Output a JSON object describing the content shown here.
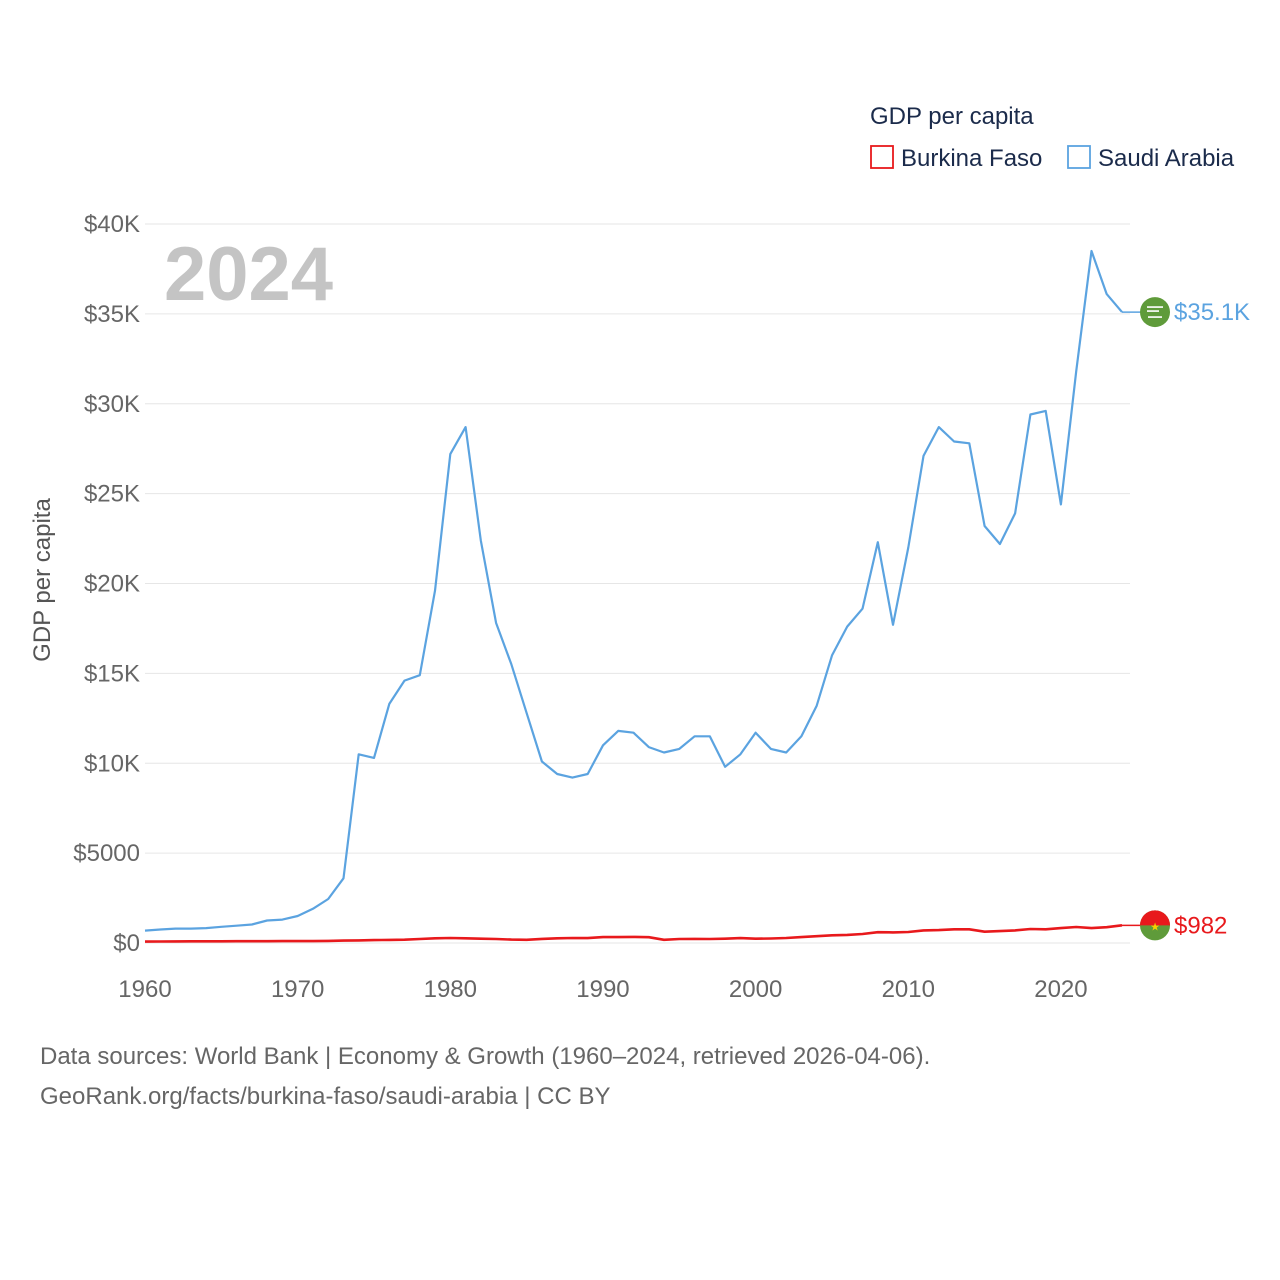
{
  "chart_data": {
    "type": "line",
    "title": "",
    "year_label": "2024",
    "ylabel": "GDP per capita",
    "xlabel": "",
    "ylim": [
      0,
      40000
    ],
    "xlim": [
      1960,
      2024
    ],
    "y_ticks": [
      0,
      5000,
      10000,
      15000,
      20000,
      25000,
      30000,
      35000,
      40000
    ],
    "y_tick_labels": [
      "$0",
      "$5000",
      "$10K",
      "$15K",
      "$20K",
      "$25K",
      "$30K",
      "$35K",
      "$40K"
    ],
    "x_ticks": [
      1960,
      1970,
      1980,
      1990,
      2000,
      2010,
      2020
    ],
    "x_tick_labels": [
      "1960",
      "1970",
      "1980",
      "1990",
      "2000",
      "2010",
      "2020"
    ],
    "grid": true,
    "legend": {
      "title": "GDP per capita",
      "position": "top-right"
    },
    "x": [
      1960,
      1961,
      1962,
      1963,
      1964,
      1965,
      1966,
      1967,
      1968,
      1969,
      1970,
      1971,
      1972,
      1973,
      1974,
      1975,
      1976,
      1977,
      1978,
      1979,
      1980,
      1981,
      1982,
      1983,
      1984,
      1985,
      1986,
      1987,
      1988,
      1989,
      1990,
      1991,
      1992,
      1993,
      1994,
      1995,
      1996,
      1997,
      1998,
      1999,
      2000,
      2001,
      2002,
      2003,
      2004,
      2005,
      2006,
      2007,
      2008,
      2009,
      2010,
      2011,
      2012,
      2013,
      2014,
      2015,
      2016,
      2017,
      2018,
      2019,
      2020,
      2021,
      2022,
      2023,
      2024
    ],
    "series": [
      {
        "name": "Burkina Faso",
        "color": "#e8191c",
        "end_label": "$982",
        "flag_icon": "burkina-faso-flag-icon",
        "values": [
          80,
          85,
          90,
          92,
          95,
          97,
          100,
          100,
          100,
          105,
          105,
          105,
          115,
          135,
          145,
          160,
          170,
          185,
          220,
          260,
          280,
          260,
          240,
          220,
          190,
          180,
          230,
          260,
          280,
          275,
          330,
          330,
          340,
          320,
          180,
          220,
          230,
          220,
          240,
          270,
          240,
          250,
          280,
          330,
          380,
          430,
          450,
          500,
          600,
          590,
          610,
          700,
          720,
          760,
          760,
          630,
          660,
          700,
          780,
          760,
          830,
          890,
          830,
          880,
          982
        ]
      },
      {
        "name": "Saudi Arabia",
        "color": "#5ba3e0",
        "end_label": "$35.1K",
        "flag_icon": "saudi-arabia-flag-icon",
        "values": [
          690,
          750,
          800,
          800,
          830,
          900,
          960,
          1030,
          1250,
          1300,
          1500,
          1900,
          2450,
          3600,
          10500,
          10300,
          13300,
          14600,
          14900,
          19600,
          27200,
          28700,
          22400,
          17800,
          15500,
          12800,
          10100,
          9400,
          9200,
          9400,
          11000,
          11800,
          11700,
          10900,
          10600,
          10800,
          11500,
          11500,
          9800,
          10500,
          11700,
          10800,
          10600,
          11500,
          13200,
          16000,
          17600,
          18600,
          22300,
          17700,
          22000,
          27100,
          28700,
          27900,
          27800,
          23200,
          22200,
          23900,
          29400,
          29600,
          24400,
          31800,
          38500,
          36100,
          35100
        ]
      }
    ]
  },
  "footer": {
    "line1": "Data sources: World Bank | Economy & Growth (1960–2024, retrieved 2026-04-06).",
    "line2": "GeoRank.org/facts/burkina-faso/saudi-arabia | CC BY"
  }
}
